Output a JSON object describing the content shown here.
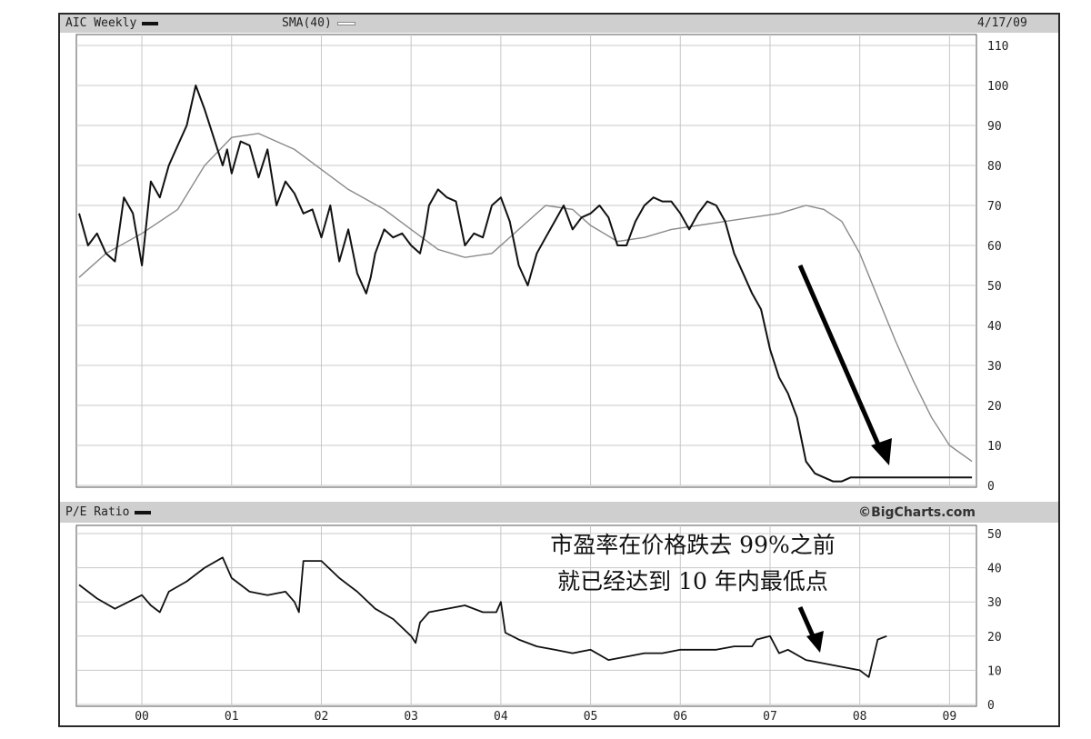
{
  "header": {
    "symbol_label": "AIC Weekly",
    "sma_label": "SMA(40)",
    "date": "4/17/09"
  },
  "lower_header": {
    "pe_label": "P/E Ratio",
    "credit": "©BigCharts.com"
  },
  "annotation": {
    "line1": "市盈率在价格跌去 99%之前",
    "line2": "就已经达到 10 年内最低点"
  },
  "colors": {
    "price": "#111111",
    "sma": "#8a8a8a",
    "grid": "#c8c8c8",
    "band": "#cfcfcf",
    "arrow": "#000000"
  },
  "chart_data": [
    {
      "type": "line",
      "title": "AIC Weekly",
      "ylim": [
        0,
        110
      ],
      "yticks": [
        0,
        10,
        20,
        30,
        40,
        50,
        60,
        70,
        80,
        90,
        100,
        110
      ],
      "xlim": [
        1999.27,
        2009.3
      ],
      "series": [
        {
          "name": "AIC Weekly",
          "x": [
            1999.3,
            1999.4,
            1999.5,
            1999.6,
            1999.7,
            1999.8,
            1999.9,
            2000.0,
            2000.1,
            2000.2,
            2000.3,
            2000.4,
            2000.5,
            2000.6,
            2000.7,
            2000.8,
            2000.9,
            2000.95,
            2001.0,
            2001.1,
            2001.2,
            2001.3,
            2001.4,
            2001.5,
            2001.6,
            2001.7,
            2001.8,
            2001.9,
            2002.0,
            2002.1,
            2002.2,
            2002.3,
            2002.4,
            2002.5,
            2002.55,
            2002.6,
            2002.7,
            2002.8,
            2002.9,
            2003.0,
            2003.1,
            2003.15,
            2003.2,
            2003.3,
            2003.4,
            2003.5,
            2003.6,
            2003.7,
            2003.8,
            2003.9,
            2004.0,
            2004.1,
            2004.2,
            2004.3,
            2004.4,
            2004.5,
            2004.6,
            2004.7,
            2004.8,
            2004.9,
            2005.0,
            2005.1,
            2005.2,
            2005.3,
            2005.4,
            2005.5,
            2005.6,
            2005.7,
            2005.8,
            2005.9,
            2006.0,
            2006.1,
            2006.2,
            2006.3,
            2006.4,
            2006.5,
            2006.6,
            2006.7,
            2006.8,
            2006.9,
            2007.0,
            2007.1,
            2007.2,
            2007.3,
            2007.4,
            2007.5,
            2007.6,
            2007.7,
            2007.8,
            2007.9,
            2008.0,
            2008.1,
            2008.2,
            2008.3,
            2008.4,
            2008.5,
            2008.6,
            2008.65,
            2008.7,
            2008.75,
            2008.8,
            2008.9,
            2009.0,
            2009.1,
            2009.2,
            2009.25
          ],
          "values": [
            68,
            60,
            63,
            58,
            56,
            72,
            68,
            55,
            76,
            72,
            80,
            85,
            90,
            100,
            94,
            87,
            80,
            84,
            78,
            86,
            85,
            77,
            84,
            70,
            76,
            73,
            68,
            69,
            62,
            70,
            56,
            64,
            53,
            48,
            52,
            58,
            64,
            62,
            63,
            60,
            58,
            63,
            70,
            74,
            72,
            71,
            60,
            63,
            62,
            70,
            72,
            66,
            55,
            50,
            58,
            62,
            66,
            70,
            64,
            67,
            68,
            70,
            67,
            60,
            60,
            66,
            70,
            72,
            71,
            71,
            68,
            64,
            68,
            71,
            70,
            66,
            58,
            53,
            48,
            44,
            34,
            27,
            23,
            17,
            6,
            3,
            2,
            1,
            1,
            2,
            2,
            2,
            2,
            2,
            2,
            2,
            2,
            2,
            2,
            2,
            2,
            2,
            2,
            2,
            2,
            2
          ]
        },
        {
          "name": "SMA(40)",
          "x": [
            1999.3,
            1999.6,
            2000.0,
            2000.4,
            2000.7,
            2001.0,
            2001.3,
            2001.7,
            2002.0,
            2002.3,
            2002.7,
            2003.0,
            2003.3,
            2003.6,
            2003.9,
            2004.2,
            2004.5,
            2004.8,
            2005.0,
            2005.3,
            2005.6,
            2005.9,
            2006.2,
            2006.5,
            2006.8,
            2007.1,
            2007.4,
            2007.6,
            2007.8,
            2008.0,
            2008.2,
            2008.4,
            2008.6,
            2008.8,
            2009.0,
            2009.25
          ],
          "values": [
            52,
            58,
            63,
            69,
            80,
            87,
            88,
            84,
            79,
            74,
            69,
            64,
            59,
            57,
            58,
            64,
            70,
            69,
            65,
            61,
            62,
            64,
            65,
            66,
            67,
            68,
            70,
            69,
            66,
            58,
            47,
            36,
            26,
            17,
            10,
            6
          ]
        }
      ]
    },
    {
      "type": "line",
      "title": "P/E Ratio",
      "ylim": [
        0,
        50
      ],
      "yticks": [
        0,
        10,
        20,
        30,
        40,
        50
      ],
      "xlim": [
        1999.27,
        2009.3
      ],
      "xticks": [
        "00",
        "01",
        "02",
        "03",
        "04",
        "05",
        "06",
        "07",
        "08",
        "09"
      ],
      "series": [
        {
          "name": "P/E Ratio",
          "x": [
            1999.3,
            1999.5,
            1999.7,
            2000.0,
            2000.1,
            2000.2,
            2000.3,
            2000.5,
            2000.7,
            2000.9,
            2001.0,
            2001.2,
            2001.4,
            2001.6,
            2001.7,
            2001.75,
            2001.8,
            2002.0,
            2002.2,
            2002.4,
            2002.6,
            2002.8,
            2003.0,
            2003.05,
            2003.1,
            2003.2,
            2003.4,
            2003.6,
            2003.8,
            2003.95,
            2004.0,
            2004.05,
            2004.2,
            2004.4,
            2004.6,
            2004.8,
            2005.0,
            2005.2,
            2005.4,
            2005.6,
            2005.8,
            2006.0,
            2006.2,
            2006.4,
            2006.6,
            2006.8,
            2006.85,
            2007.0,
            2007.1,
            2007.2,
            2007.4,
            2007.6,
            2007.8,
            2008.0,
            2008.05,
            2008.1,
            2008.2,
            2008.3
          ],
          "values": [
            35,
            31,
            28,
            32,
            29,
            27,
            33,
            36,
            40,
            43,
            37,
            33,
            32,
            33,
            30,
            27,
            42,
            42,
            37,
            33,
            28,
            25,
            20,
            18,
            24,
            27,
            28,
            29,
            27,
            27,
            30,
            21,
            19,
            17,
            16,
            15,
            16,
            13,
            14,
            15,
            15,
            16,
            16,
            16,
            17,
            17,
            19,
            20,
            15,
            16,
            13,
            12,
            11,
            10,
            9,
            8,
            19,
            20
          ]
        }
      ]
    }
  ]
}
